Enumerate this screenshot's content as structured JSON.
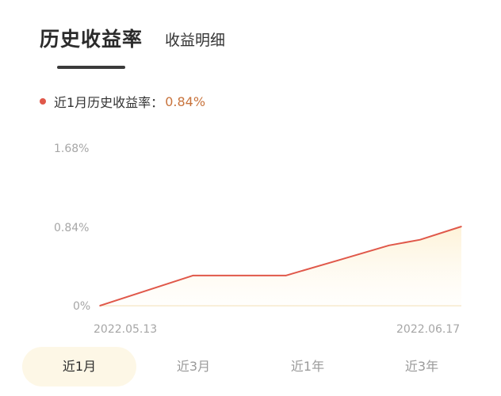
{
  "tabs": {
    "history_yield": "历史收益率",
    "yield_detail": "收益明细"
  },
  "legend": {
    "label": "近1月历史收益率：",
    "value": "0.84%",
    "color": "#e0584a"
  },
  "periods": [
    "近1月",
    "近3月",
    "近1年",
    "近3年"
  ],
  "active_period": "近1月",
  "chart_data": {
    "type": "line",
    "title": "",
    "xlabel": "",
    "ylabel": "",
    "yticks": [
      "1.68%",
      "0.84%",
      "0%"
    ],
    "ylim": [
      0,
      1.68
    ],
    "x_start_label": "2022.05.13",
    "x_end_label": "2022.06.17",
    "grid": false,
    "series": [
      {
        "color": "#e0584a",
        "points": [
          {
            "x": "2022.05.13",
            "y": 0
          },
          {
            "x": "2022.05.22",
            "y": 0.32
          },
          {
            "x": "2022.05.31",
            "y": 0.32
          },
          {
            "x": "2022.06.05",
            "y": 0.48
          },
          {
            "x": "2022.06.10",
            "y": 0.64
          },
          {
            "x": "2022.06.13",
            "y": 0.7
          },
          {
            "x": "2022.06.17",
            "y": 0.84
          }
        ]
      }
    ]
  }
}
